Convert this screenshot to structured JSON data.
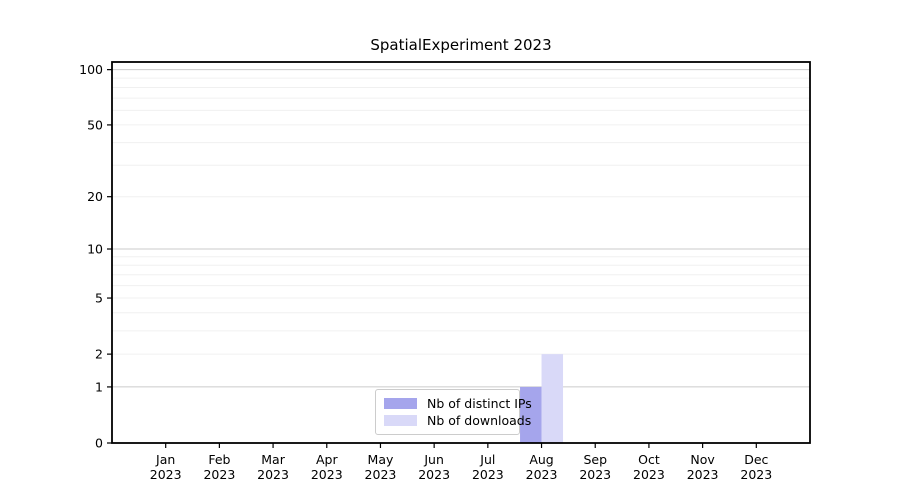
{
  "title": "SpatialExperiment 2023",
  "chart_data": {
    "type": "bar",
    "title": "SpatialExperiment 2023",
    "categories": [
      "Jan",
      "Feb",
      "Mar",
      "Apr",
      "May",
      "Jun",
      "Jul",
      "Aug",
      "Sep",
      "Oct",
      "Nov",
      "Dec"
    ],
    "category_sublabels": [
      "2023",
      "2023",
      "2023",
      "2023",
      "2023",
      "2023",
      "2023",
      "2023",
      "2023",
      "2023",
      "2023",
      "2023"
    ],
    "series": [
      {
        "name": "Nb of distinct IPs",
        "color": "#a5a5ec",
        "values": [
          0,
          0,
          0,
          0,
          0,
          0,
          0,
          1,
          0,
          0,
          0,
          0
        ]
      },
      {
        "name": "Nb of downloads",
        "color": "#d9d9f8",
        "values": [
          0,
          0,
          0,
          0,
          0,
          0,
          0,
          2,
          0,
          0,
          0,
          0
        ]
      }
    ],
    "xlabel": "",
    "ylabel": "",
    "yscale": "log1p",
    "ylim": [
      0,
      110
    ],
    "ytick_values": [
      0,
      1,
      2,
      5,
      10,
      20,
      50,
      100
    ],
    "major_grid_values": [
      1,
      10,
      100
    ],
    "minor_grid_values": [
      2,
      3,
      4,
      5,
      6,
      7,
      8,
      9,
      20,
      30,
      40,
      50,
      60,
      70,
      80,
      90
    ],
    "grid": true,
    "legend_position": "inside-bottom-center",
    "colors": {
      "axis_line": "#000000",
      "tick_label": "#000000",
      "major_grid": "#cbcbcb",
      "minor_grid": "#f0f0f0",
      "legend_border": "#cccccc"
    }
  }
}
